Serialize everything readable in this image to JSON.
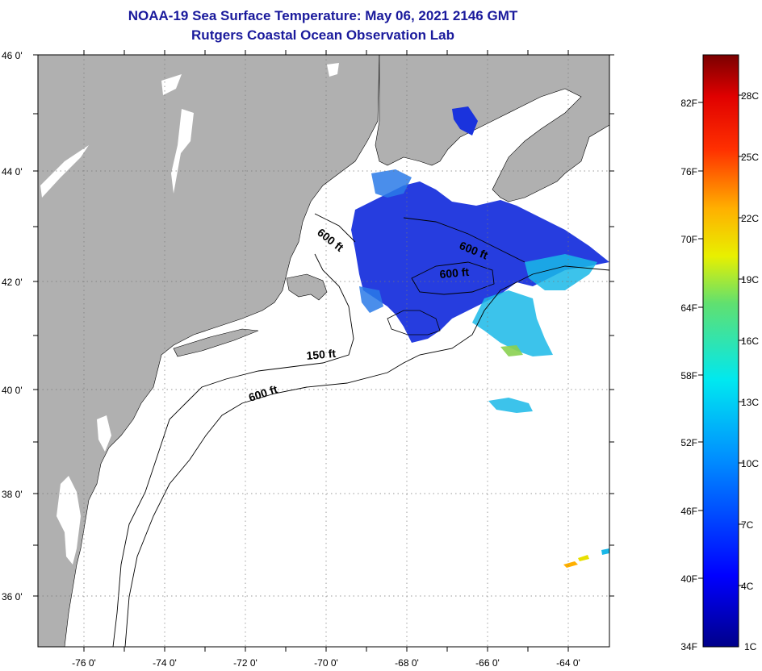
{
  "title": {
    "line1": "NOAA-19 Sea Surface Temperature:  May 06, 2021 2146 GMT",
    "line2": "Rutgers Coastal Ocean Observation Lab"
  },
  "axes": {
    "lat_labels": [
      "46 0'",
      "44 0'",
      "42 0'",
      "40 0'",
      "38 0'",
      "36 0'"
    ],
    "lon_labels": [
      "-76 0'",
      "-74 0'",
      "-72 0'",
      "-70 0'",
      "-68 0'",
      "-66 0'",
      "-64 0'"
    ]
  },
  "contours": {
    "label_150": "150 ft",
    "label_600": "600 ft"
  },
  "colorbar": {
    "f_labels": [
      "82F",
      "76F",
      "70F",
      "64F",
      "58F",
      "52F",
      "46F",
      "40F",
      "34F"
    ],
    "c_labels": [
      "28C",
      "25C",
      "22C",
      "19C",
      "16C",
      "13C",
      "10C",
      "7C",
      "4C",
      "1C"
    ]
  },
  "colors": {
    "land": "#b0b0b0",
    "title": "#1a1a9c",
    "sst_deep": "#1a33dd",
    "sst_mid": "#2a7ae8",
    "sst_light": "#1ab8e8",
    "sst_warm": "#8ad050"
  }
}
